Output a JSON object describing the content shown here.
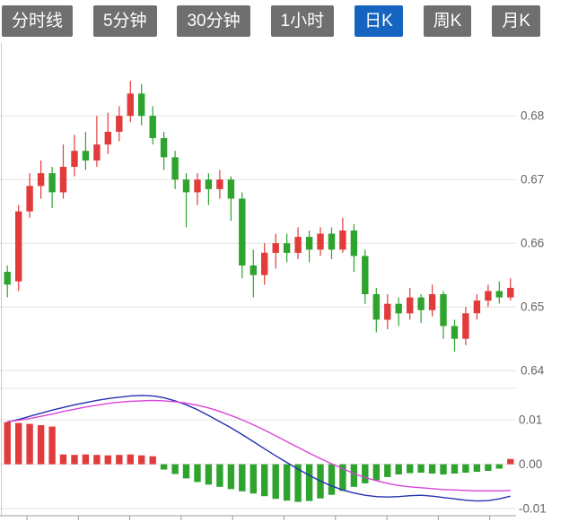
{
  "toolbar": {
    "tabs": [
      {
        "label": "分时线",
        "active": false
      },
      {
        "label": "5分钟",
        "active": false
      },
      {
        "label": "30分钟",
        "active": false
      },
      {
        "label": "1小时",
        "active": false
      },
      {
        "label": "日K",
        "active": true
      },
      {
        "label": "周K",
        "active": false
      },
      {
        "label": "月K",
        "active": false
      }
    ],
    "active_tab_color": "#1565c0",
    "inactive_tab_color": "#6f6f6f"
  },
  "chart_data": {
    "type": "candlestick",
    "up_color": "#e23b3b",
    "down_color": "#2ea32e",
    "grid_color": "#e4e4e4",
    "axis_color": "#9a9a9a",
    "label_color": "#666666",
    "main_panel": {
      "ylim": [
        0.6375,
        0.691
      ],
      "y_ticks": [
        0.68,
        0.67,
        0.66,
        0.65,
        0.64
      ],
      "y_tick_labels": [
        "0.68",
        "0.67",
        "0.66",
        "0.65",
        "0.64"
      ],
      "candles": [
        [
          0.6555,
          0.6565,
          0.6515,
          0.6535
        ],
        [
          0.654,
          0.666,
          0.6525,
          0.665
        ],
        [
          0.665,
          0.671,
          0.664,
          0.669
        ],
        [
          0.669,
          0.673,
          0.667,
          0.671
        ],
        [
          0.671,
          0.672,
          0.6655,
          0.668
        ],
        [
          0.668,
          0.6755,
          0.667,
          0.672
        ],
        [
          0.672,
          0.677,
          0.6705,
          0.6745
        ],
        [
          0.6745,
          0.6775,
          0.6715,
          0.673
        ],
        [
          0.673,
          0.68,
          0.672,
          0.6755
        ],
        [
          0.6755,
          0.6805,
          0.674,
          0.6775
        ],
        [
          0.6775,
          0.6815,
          0.676,
          0.68
        ],
        [
          0.68,
          0.6855,
          0.679,
          0.6835
        ],
        [
          0.6835,
          0.685,
          0.6785,
          0.68
        ],
        [
          0.68,
          0.6815,
          0.6755,
          0.6765
        ],
        [
          0.6765,
          0.6775,
          0.6715,
          0.6735
        ],
        [
          0.6735,
          0.6745,
          0.6685,
          0.67
        ],
        [
          0.67,
          0.671,
          0.6625,
          0.668
        ],
        [
          0.668,
          0.671,
          0.666,
          0.67
        ],
        [
          0.67,
          0.671,
          0.666,
          0.6685
        ],
        [
          0.6685,
          0.6715,
          0.667,
          0.67
        ],
        [
          0.67,
          0.6705,
          0.6635,
          0.667
        ],
        [
          0.667,
          0.668,
          0.6545,
          0.6565
        ],
        [
          0.6565,
          0.659,
          0.6515,
          0.655
        ],
        [
          0.655,
          0.66,
          0.6535,
          0.6585
        ],
        [
          0.6585,
          0.6615,
          0.656,
          0.66
        ],
        [
          0.66,
          0.6615,
          0.657,
          0.6585
        ],
        [
          0.6585,
          0.6625,
          0.6575,
          0.661
        ],
        [
          0.661,
          0.662,
          0.657,
          0.659
        ],
        [
          0.659,
          0.6625,
          0.658,
          0.6615
        ],
        [
          0.6615,
          0.6625,
          0.6575,
          0.659
        ],
        [
          0.659,
          0.664,
          0.6585,
          0.662
        ],
        [
          0.662,
          0.663,
          0.6555,
          0.658
        ],
        [
          0.658,
          0.659,
          0.6505,
          0.652
        ],
        [
          0.652,
          0.653,
          0.646,
          0.648
        ],
        [
          0.648,
          0.652,
          0.6465,
          0.6505
        ],
        [
          0.6505,
          0.6515,
          0.647,
          0.649
        ],
        [
          0.649,
          0.653,
          0.648,
          0.6515
        ],
        [
          0.6515,
          0.652,
          0.6475,
          0.6495
        ],
        [
          0.6495,
          0.6535,
          0.6485,
          0.652
        ],
        [
          0.652,
          0.6525,
          0.645,
          0.647
        ],
        [
          0.647,
          0.648,
          0.643,
          0.645
        ],
        [
          0.645,
          0.65,
          0.644,
          0.649
        ],
        [
          0.649,
          0.652,
          0.648,
          0.651
        ],
        [
          0.651,
          0.6535,
          0.65,
          0.6525
        ],
        [
          0.6525,
          0.654,
          0.6505,
          0.6515
        ],
        [
          0.6515,
          0.6545,
          0.651,
          0.653
        ]
      ]
    },
    "macd_panel": {
      "ylim": [
        -0.011,
        0.0165
      ],
      "y_ticks": [
        0.01,
        0.0,
        -0.01
      ],
      "y_tick_labels": [
        "0.01",
        "0.00",
        "-0.01"
      ],
      "histogram": [
        0.0095,
        0.0093,
        0.0091,
        0.0088,
        0.0085,
        0.0022,
        0.0021,
        0.0022,
        0.0021,
        0.002,
        0.0021,
        0.0022,
        0.002,
        0.0018,
        -0.0012,
        -0.0022,
        -0.0032,
        -0.004,
        -0.0046,
        -0.0051,
        -0.0056,
        -0.0061,
        -0.0066,
        -0.0072,
        -0.0078,
        -0.0082,
        -0.0085,
        -0.0083,
        -0.0077,
        -0.0069,
        -0.006,
        -0.0051,
        -0.0043,
        -0.0036,
        -0.0029,
        -0.0023,
        -0.002,
        -0.0019,
        -0.0021,
        -0.0023,
        -0.0021,
        -0.0019,
        -0.0017,
        -0.0015,
        -0.001,
        0.0012
      ],
      "dif_line": {
        "color": "#2432b0",
        "values": [
          0.0095,
          0.0101,
          0.0108,
          0.0115,
          0.0122,
          0.0128,
          0.0134,
          0.0139,
          0.0144,
          0.0148,
          0.0151,
          0.0154,
          0.0155,
          0.0154,
          0.015,
          0.0143,
          0.0134,
          0.0123,
          0.011,
          0.0096,
          0.0082,
          0.0067,
          0.0051,
          0.0035,
          0.0019,
          0.0004,
          -0.0011,
          -0.0025,
          -0.0038,
          -0.0049,
          -0.0058,
          -0.0065,
          -0.007,
          -0.0073,
          -0.0074,
          -0.0073,
          -0.0071,
          -0.007,
          -0.0072,
          -0.0075,
          -0.0078,
          -0.0081,
          -0.0083,
          -0.0082,
          -0.0078,
          -0.0072
        ]
      },
      "dea_line": {
        "color": "#d944d9",
        "values": [
          0.0096,
          0.0099,
          0.0103,
          0.0108,
          0.0113,
          0.0119,
          0.0124,
          0.0129,
          0.0133,
          0.0137,
          0.014,
          0.0142,
          0.0143,
          0.0144,
          0.0143,
          0.0141,
          0.0138,
          0.0133,
          0.0127,
          0.0119,
          0.011,
          0.01,
          0.0089,
          0.0077,
          0.0064,
          0.0051,
          0.0038,
          0.0025,
          0.0013,
          0.0001,
          -0.001,
          -0.0021,
          -0.003,
          -0.0037,
          -0.0043,
          -0.0048,
          -0.0051,
          -0.0053,
          -0.0055,
          -0.0057,
          -0.0058,
          -0.0059,
          -0.006,
          -0.006,
          -0.006,
          -0.0059
        ]
      }
    }
  }
}
